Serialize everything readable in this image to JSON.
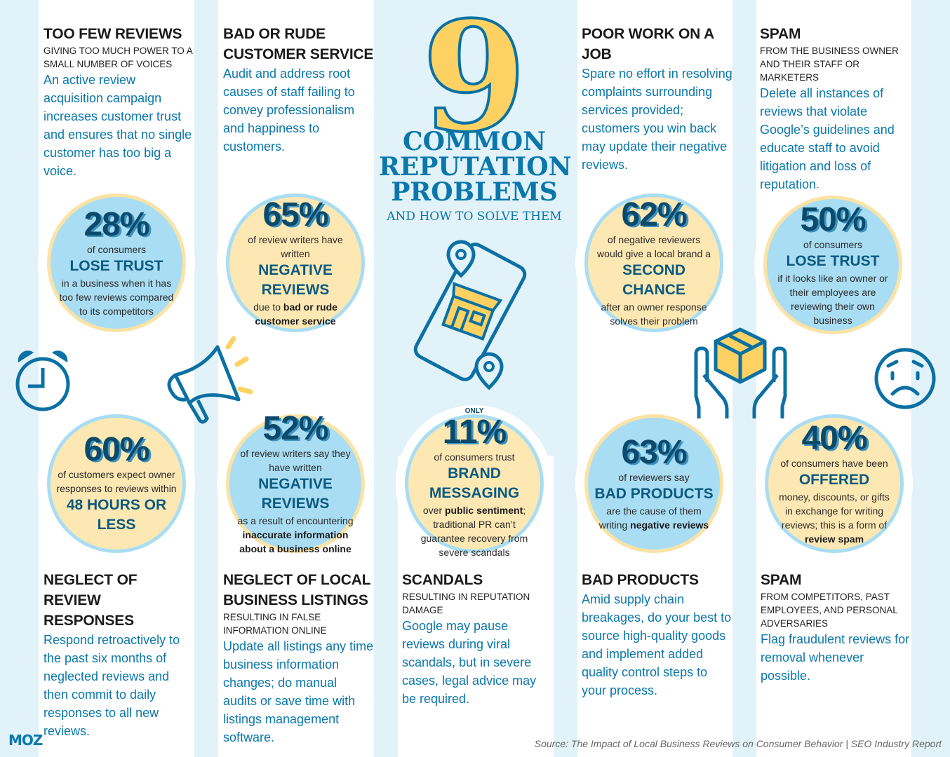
{
  "header": {
    "number": "9",
    "title_lines": [
      "COMMON",
      "REPUTATION",
      "PROBLEMS"
    ],
    "subtitle": "AND HOW TO SOLVE THEM"
  },
  "problems": [
    {
      "heading": "TOO FEW REVIEWS",
      "sub": "GIVING TOO MUCH POWER TO A SMALL NUMBER OF VOICES",
      "body": "An active review acquisition campaign increases customer trust and ensures that no single customer has too big a voice."
    },
    {
      "heading": "BAD OR RUDE CUSTOMER SERVICE",
      "sub": "",
      "body": "Audit and address root causes of staff failing to convey professionalism and happiness to customers."
    },
    {
      "heading": "POOR WORK ON A JOB",
      "sub": "",
      "body": "Spare no effort in resolving complaints surrounding services provided; customers you win back may update their negative reviews."
    },
    {
      "heading": "SPAM",
      "sub": "FROM THE BUSINESS OWNER AND THEIR STAFF OR MARKETERS",
      "body": "Delete all instances of reviews that violate Google’s guidelines and educate staff to avoid litigation and loss of reputation."
    },
    {
      "heading": "NEGLECT OF REVIEW RESPONSES",
      "sub": "",
      "body": "Respond retroactively to the past six months of neglected reviews and then commit to daily responses to all new reviews."
    },
    {
      "heading": "NEGLECT OF LOCAL BUSINESS LISTINGS",
      "sub": "RESULTING IN FALSE INFORMATION ONLINE",
      "body": "Update all listings any time business information changes; do manual audits or save time with listings management software."
    },
    {
      "heading": "SCANDALS",
      "sub": "RESULTING IN REPUTATION DAMAGE",
      "body": "Google may pause reviews during viral scandals, but in severe cases, legal advice may be required."
    },
    {
      "heading": "BAD PRODUCTS",
      "sub": "",
      "body": "Amid supply chain breakages, do your best to source high-quality goods and implement added quality control steps to your process."
    },
    {
      "heading": "SPAM",
      "sub": "FROM COMPETITORS, PAST EMPLOYEES, AND PERSONAL ADVERSARIES",
      "body": "Flag fraudulent reviews for removal whenever possible."
    }
  ],
  "stats": [
    {
      "style": "blue",
      "pre": "",
      "percent": "28%",
      "before": "of consumers",
      "highlight": "LOSE TRUST",
      "after": [
        {
          "text": "in a business when it has too few reviews compared to its competitors",
          "bold": false
        }
      ]
    },
    {
      "style": "yellow",
      "pre": "",
      "percent": "65%",
      "before": "of review writers have written",
      "highlight": "NEGATIVE REVIEWS",
      "after": [
        {
          "text": "due to ",
          "bold": false
        },
        {
          "text": "bad or rude customer service",
          "bold": true
        }
      ]
    },
    {
      "style": "yellow",
      "pre": "",
      "percent": "62%",
      "before": "of negative reviewers would give a local brand a",
      "highlight": "SECOND CHANCE",
      "after": [
        {
          "text": "after an owner response solves their problem",
          "bold": false
        }
      ]
    },
    {
      "style": "blue",
      "pre": "",
      "percent": "50%",
      "before": "of consumers",
      "highlight": "LOSE TRUST",
      "after": [
        {
          "text": "if it looks like an owner or their employees are reviewing their own business",
          "bold": false
        }
      ]
    },
    {
      "style": "yellow",
      "pre": "",
      "percent": "60%",
      "before": "of customers expect owner responses to reviews within",
      "highlight": "48 HOURS OR LESS",
      "after": []
    },
    {
      "style": "blue",
      "pre": "",
      "percent": "52%",
      "before": "of review writers say they have written",
      "highlight": "NEGATIVE REVIEWS",
      "after": [
        {
          "text": "as a result of encountering ",
          "bold": false
        },
        {
          "text": "inaccurate information about a business online",
          "bold": true
        }
      ]
    },
    {
      "style": "yellow",
      "pre": "ONLY",
      "percent": "11%",
      "before": "of consumers trust",
      "highlight": "BRAND MESSAGING",
      "after": [
        {
          "text": "over ",
          "bold": false
        },
        {
          "text": "public sentiment",
          "bold": true
        },
        {
          "text": "; traditional PR can’t guarantee recovery from severe scandals",
          "bold": false
        }
      ]
    },
    {
      "style": "blue",
      "pre": "",
      "percent": "63%",
      "before": "of reviewers say",
      "highlight": "BAD PRODUCTS",
      "after": [
        {
          "text": "are the cause of them writing ",
          "bold": false
        },
        {
          "text": "negative reviews",
          "bold": true
        }
      ]
    },
    {
      "style": "yellow",
      "pre": "",
      "percent": "40%",
      "before": "of consumers have been",
      "highlight": "OFFERED",
      "after": [
        {
          "text": "money, discounts, or gifts in exchange for writing reviews; this is a form of ",
          "bold": false
        },
        {
          "text": "review spam",
          "bold": true
        }
      ]
    }
  ],
  "icons": [
    "alarm-clock-icon",
    "megaphone-icon",
    "phone-store-location-icon",
    "hands-holding-box-icon",
    "sad-face-icon"
  ],
  "colors": {
    "background": "#e1f2f9",
    "accent_blue": "#0a77ab",
    "circle_blue": "#a9ddf3",
    "circle_yellow": "#fde8b3",
    "number_yellow": "#fdd262",
    "dark_navy": "#0b4a6b"
  },
  "footer": {
    "logo": "MOZ",
    "source": "Source: The Impact of Local Business Reviews on Consumer Behavior | SEO Industry Report"
  }
}
